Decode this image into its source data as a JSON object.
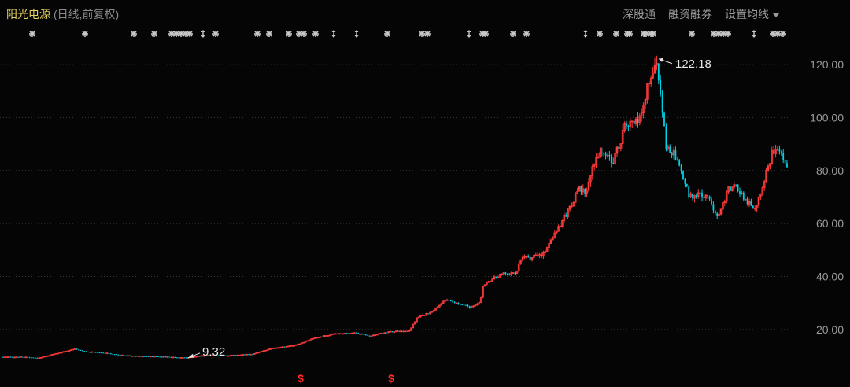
{
  "header": {
    "stock_name": "阳光电源",
    "subtitle": "(日线,前复权)",
    "menu": [
      "深股通",
      "融资融券",
      "设置均线"
    ]
  },
  "colors": {
    "up": "#ff3b3b",
    "down": "#00d2e6",
    "grid": "#3a3a3a",
    "title": "#e8d35a",
    "marker": "#c8c8c8",
    "event": "#ff2a2a"
  },
  "chart_data": {
    "type": "candlestick",
    "yticks": [
      20,
      40,
      60,
      80,
      100,
      120
    ],
    "ytick_labels": [
      "20.00",
      "40.00",
      "60.00",
      "80.00",
      "100.00",
      "120.00"
    ],
    "ylim": [
      4.8,
      132.5
    ],
    "annotations": [
      {
        "label": "122.18",
        "value": 122.18,
        "kind": "high"
      },
      {
        "label": "9.32",
        "value": 9.32,
        "kind": "low"
      }
    ],
    "price_path": [
      [
        0,
        9.6
      ],
      [
        30,
        9.6
      ],
      [
        48,
        9.2
      ],
      [
        55,
        9.7
      ],
      [
        75,
        11.2
      ],
      [
        95,
        12.6
      ],
      [
        110,
        11.6
      ],
      [
        130,
        11.3
      ],
      [
        150,
        10.4
      ],
      [
        170,
        10.0
      ],
      [
        200,
        9.8
      ],
      [
        236,
        9.32
      ],
      [
        260,
        10.3
      ],
      [
        290,
        10.2
      ],
      [
        320,
        10.7
      ],
      [
        345,
        12.8
      ],
      [
        375,
        14.1
      ],
      [
        400,
        16.8
      ],
      [
        425,
        18.4
      ],
      [
        450,
        18.8
      ],
      [
        470,
        17.6
      ],
      [
        495,
        19.2
      ],
      [
        520,
        19.4
      ],
      [
        530,
        24.5
      ],
      [
        550,
        26.8
      ],
      [
        565,
        31.2
      ],
      [
        580,
        29.8
      ],
      [
        600,
        28.3
      ],
      [
        610,
        30.3
      ],
      [
        614,
        36.8
      ],
      [
        620,
        38.2
      ],
      [
        640,
        41.2
      ],
      [
        655,
        41.3
      ],
      [
        663,
        46.9
      ],
      [
        675,
        47.2
      ],
      [
        690,
        48.4
      ],
      [
        705,
        56.6
      ],
      [
        720,
        63.8
      ],
      [
        735,
        72.8
      ],
      [
        745,
        71.7
      ],
      [
        758,
        86.1
      ],
      [
        765,
        86.5
      ],
      [
        780,
        83.8
      ],
      [
        795,
        97.3
      ],
      [
        805,
        97.6
      ],
      [
        815,
        99.4
      ],
      [
        822,
        111.8
      ],
      [
        830,
        115.5
      ],
      [
        834,
        122.18
      ],
      [
        840,
        108.2
      ],
      [
        846,
        88.5
      ],
      [
        855,
        86.9
      ],
      [
        866,
        78.6
      ],
      [
        876,
        70.4
      ],
      [
        888,
        70.8
      ],
      [
        900,
        69.5
      ],
      [
        912,
        62.8
      ],
      [
        925,
        72.6
      ],
      [
        935,
        74.1
      ],
      [
        948,
        68.6
      ],
      [
        960,
        65.8
      ],
      [
        972,
        77.8
      ],
      [
        982,
        87.5
      ],
      [
        992,
        86.9
      ],
      [
        1002,
        81.2
      ]
    ],
    "volatility": [
      [
        0,
        0.015
      ],
      [
        500,
        0.015
      ],
      [
        610,
        0.02
      ],
      [
        700,
        0.028
      ],
      [
        800,
        0.034
      ],
      [
        860,
        0.03
      ],
      [
        1002,
        0.025
      ]
    ],
    "x_start": 4,
    "x_step": 2.4,
    "markers": {
      "star": [
        41,
        108,
        170,
        196,
        218,
        224,
        230,
        236,
        241,
        274,
        327,
        342,
        367,
        380,
        386,
        401,
        492,
        536,
        543,
        613,
        617,
        652,
        669,
        762,
        783,
        797,
        800,
        818,
        821,
        827,
        830,
        879,
        907,
        913,
        919,
        925,
        982,
        988,
        995
      ],
      "arrow": [
        258,
        424,
        453,
        596,
        744,
        958
      ]
    },
    "events": [
      382,
      497
    ],
    "event_symbol": "$"
  }
}
